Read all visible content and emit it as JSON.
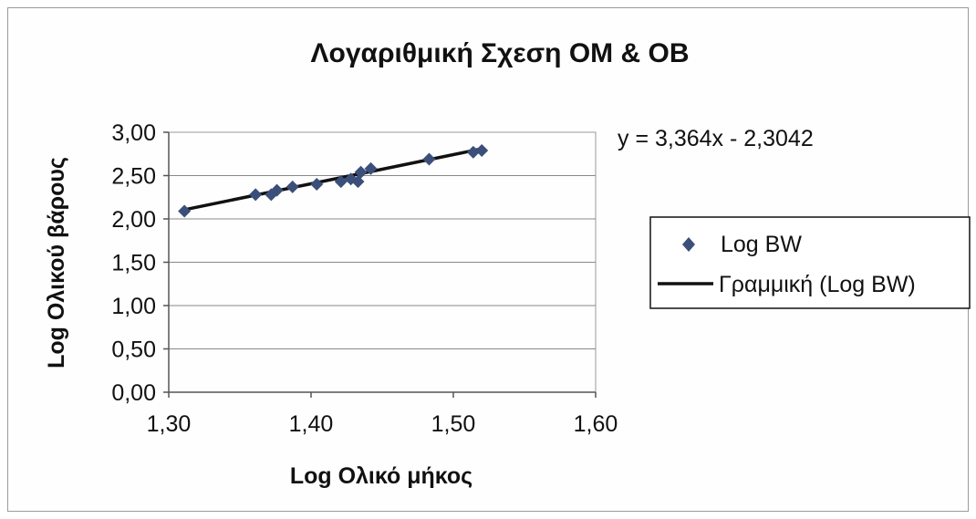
{
  "chart_data": {
    "type": "scatter",
    "title": "Λογαριθμική Σχεση ΟΜ & ΟΒ",
    "xlabel": "Log Ολικό μήκος",
    "ylabel": "Log Ολικού βάρους",
    "xlim": [
      1.3,
      1.6
    ],
    "ylim": [
      0.0,
      3.0
    ],
    "x_ticks": [
      "1,30",
      "1,40",
      "1,50",
      "1,60"
    ],
    "y_ticks": [
      "0,00",
      "0,50",
      "1,00",
      "1,50",
      "2,00",
      "2,50",
      "3,00"
    ],
    "grid": "horizontal",
    "legend_position": "right",
    "equation": "y = 3,364x - 2,3042",
    "series": [
      {
        "name": "Log BW",
        "marker": "diamond",
        "color": "#3b4f7a",
        "points": [
          [
            1.311,
            2.09
          ],
          [
            1.361,
            2.28
          ],
          [
            1.372,
            2.28
          ],
          [
            1.376,
            2.33
          ],
          [
            1.387,
            2.37
          ],
          [
            1.404,
            2.4
          ],
          [
            1.421,
            2.43
          ],
          [
            1.428,
            2.46
          ],
          [
            1.433,
            2.43
          ],
          [
            1.435,
            2.54
          ],
          [
            1.442,
            2.58
          ],
          [
            1.483,
            2.69
          ],
          [
            1.514,
            2.77
          ],
          [
            1.52,
            2.79
          ]
        ]
      },
      {
        "name": "Γραμμική (Log BW)",
        "type": "trendline",
        "color": "#111111",
        "slope": 3.364,
        "intercept": -2.3042,
        "x_range": [
          1.311,
          1.52
        ]
      }
    ]
  }
}
